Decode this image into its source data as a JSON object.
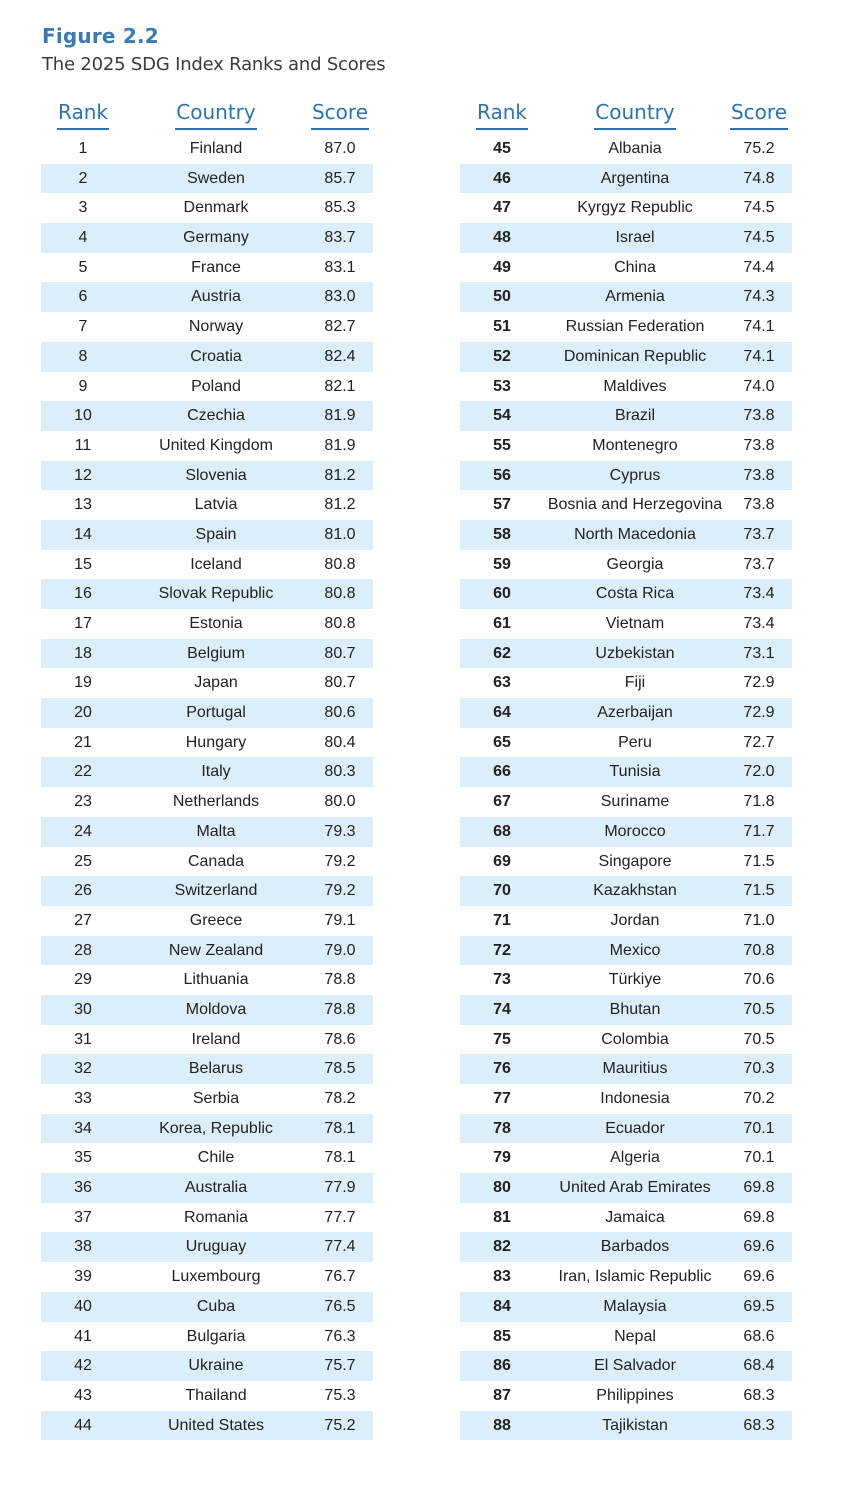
{
  "figure_label": "Figure 2.2",
  "figure_title": "The 2025 SDG Index Ranks and Scores",
  "headers": {
    "rank": "Rank",
    "country": "Country",
    "score": "Score"
  },
  "colors": {
    "accent": "#2e73b1",
    "title_blue": "#3b79b5",
    "row_shade": "#dbeef9"
  },
  "left_rows": [
    {
      "rank": "1",
      "country": "Finland",
      "score": "87.0"
    },
    {
      "rank": "2",
      "country": "Sweden",
      "score": "85.7"
    },
    {
      "rank": "3",
      "country": "Denmark",
      "score": "85.3"
    },
    {
      "rank": "4",
      "country": "Germany",
      "score": "83.7"
    },
    {
      "rank": "5",
      "country": "France",
      "score": "83.1"
    },
    {
      "rank": "6",
      "country": "Austria",
      "score": "83.0"
    },
    {
      "rank": "7",
      "country": "Norway",
      "score": "82.7"
    },
    {
      "rank": "8",
      "country": "Croatia",
      "score": "82.4"
    },
    {
      "rank": "9",
      "country": "Poland",
      "score": "82.1"
    },
    {
      "rank": "10",
      "country": "Czechia",
      "score": "81.9"
    },
    {
      "rank": "11",
      "country": "United Kingdom",
      "score": "81.9"
    },
    {
      "rank": "12",
      "country": "Slovenia",
      "score": "81.2"
    },
    {
      "rank": "13",
      "country": "Latvia",
      "score": "81.2"
    },
    {
      "rank": "14",
      "country": "Spain",
      "score": "81.0"
    },
    {
      "rank": "15",
      "country": "Iceland",
      "score": "80.8"
    },
    {
      "rank": "16",
      "country": "Slovak Republic",
      "score": "80.8"
    },
    {
      "rank": "17",
      "country": "Estonia",
      "score": "80.8"
    },
    {
      "rank": "18",
      "country": "Belgium",
      "score": "80.7"
    },
    {
      "rank": "19",
      "country": "Japan",
      "score": "80.7"
    },
    {
      "rank": "20",
      "country": "Portugal",
      "score": "80.6"
    },
    {
      "rank": "21",
      "country": "Hungary",
      "score": "80.4"
    },
    {
      "rank": "22",
      "country": "Italy",
      "score": "80.3"
    },
    {
      "rank": "23",
      "country": "Netherlands",
      "score": "80.0"
    },
    {
      "rank": "24",
      "country": "Malta",
      "score": "79.3"
    },
    {
      "rank": "25",
      "country": "Canada",
      "score": "79.2"
    },
    {
      "rank": "26",
      "country": "Switzerland",
      "score": "79.2"
    },
    {
      "rank": "27",
      "country": "Greece",
      "score": "79.1"
    },
    {
      "rank": "28",
      "country": "New Zealand",
      "score": "79.0"
    },
    {
      "rank": "29",
      "country": "Lithuania",
      "score": "78.8"
    },
    {
      "rank": "30",
      "country": "Moldova",
      "score": "78.8"
    },
    {
      "rank": "31",
      "country": "Ireland",
      "score": "78.6"
    },
    {
      "rank": "32",
      "country": "Belarus",
      "score": "78.5"
    },
    {
      "rank": "33",
      "country": "Serbia",
      "score": "78.2"
    },
    {
      "rank": "34",
      "country": "Korea, Republic",
      "score": "78.1"
    },
    {
      "rank": "35",
      "country": "Chile",
      "score": "78.1"
    },
    {
      "rank": "36",
      "country": "Australia",
      "score": "77.9"
    },
    {
      "rank": "37",
      "country": "Romania",
      "score": "77.7"
    },
    {
      "rank": "38",
      "country": "Uruguay",
      "score": "77.4"
    },
    {
      "rank": "39",
      "country": "Luxembourg",
      "score": "76.7"
    },
    {
      "rank": "40",
      "country": "Cuba",
      "score": "76.5"
    },
    {
      "rank": "41",
      "country": "Bulgaria",
      "score": "76.3"
    },
    {
      "rank": "42",
      "country": "Ukraine",
      "score": "75.7"
    },
    {
      "rank": "43",
      "country": "Thailand",
      "score": "75.3"
    },
    {
      "rank": "44",
      "country": "United States",
      "score": "75.2"
    }
  ],
  "right_rows": [
    {
      "rank": "45",
      "country": "Albania",
      "score": "75.2"
    },
    {
      "rank": "46",
      "country": "Argentina",
      "score": "74.8"
    },
    {
      "rank": "47",
      "country": "Kyrgyz Republic",
      "score": "74.5"
    },
    {
      "rank": "48",
      "country": "Israel",
      "score": "74.5"
    },
    {
      "rank": "49",
      "country": "China",
      "score": "74.4"
    },
    {
      "rank": "50",
      "country": "Armenia",
      "score": "74.3"
    },
    {
      "rank": "51",
      "country": "Russian Federation",
      "score": "74.1"
    },
    {
      "rank": "52",
      "country": "Dominican Republic",
      "score": "74.1"
    },
    {
      "rank": "53",
      "country": "Maldives",
      "score": "74.0"
    },
    {
      "rank": "54",
      "country": "Brazil",
      "score": "73.8"
    },
    {
      "rank": "55",
      "country": "Montenegro",
      "score": "73.8"
    },
    {
      "rank": "56",
      "country": "Cyprus",
      "score": "73.8"
    },
    {
      "rank": "57",
      "country": "Bosnia and Herzegovina",
      "score": "73.8"
    },
    {
      "rank": "58",
      "country": "North Macedonia",
      "score": "73.7"
    },
    {
      "rank": "59",
      "country": "Georgia",
      "score": "73.7"
    },
    {
      "rank": "60",
      "country": "Costa Rica",
      "score": "73.4"
    },
    {
      "rank": "61",
      "country": "Vietnam",
      "score": "73.4"
    },
    {
      "rank": "62",
      "country": "Uzbekistan",
      "score": "73.1"
    },
    {
      "rank": "63",
      "country": "Fiji",
      "score": "72.9"
    },
    {
      "rank": "64",
      "country": "Azerbaijan",
      "score": "72.9"
    },
    {
      "rank": "65",
      "country": "Peru",
      "score": "72.7"
    },
    {
      "rank": "66",
      "country": "Tunisia",
      "score": "72.0"
    },
    {
      "rank": "67",
      "country": "Suriname",
      "score": "71.8"
    },
    {
      "rank": "68",
      "country": "Morocco",
      "score": "71.7"
    },
    {
      "rank": "69",
      "country": "Singapore",
      "score": "71.5"
    },
    {
      "rank": "70",
      "country": "Kazakhstan",
      "score": "71.5"
    },
    {
      "rank": "71",
      "country": "Jordan",
      "score": "71.0"
    },
    {
      "rank": "72",
      "country": "Mexico",
      "score": "70.8"
    },
    {
      "rank": "73",
      "country": "Türkiye",
      "score": "70.6"
    },
    {
      "rank": "74",
      "country": "Bhutan",
      "score": "70.5"
    },
    {
      "rank": "75",
      "country": "Colombia",
      "score": "70.5"
    },
    {
      "rank": "76",
      "country": "Mauritius",
      "score": "70.3"
    },
    {
      "rank": "77",
      "country": "Indonesia",
      "score": "70.2"
    },
    {
      "rank": "78",
      "country": "Ecuador",
      "score": "70.1"
    },
    {
      "rank": "79",
      "country": "Algeria",
      "score": "70.1"
    },
    {
      "rank": "80",
      "country": "United Arab Emirates",
      "score": "69.8"
    },
    {
      "rank": "81",
      "country": "Jamaica",
      "score": "69.8"
    },
    {
      "rank": "82",
      "country": "Barbados",
      "score": "69.6"
    },
    {
      "rank": "83",
      "country": "Iran, Islamic Republic",
      "score": "69.6"
    },
    {
      "rank": "84",
      "country": "Malaysia",
      "score": "69.5"
    },
    {
      "rank": "85",
      "country": "Nepal",
      "score": "68.6"
    },
    {
      "rank": "86",
      "country": "El Salvador",
      "score": "68.4"
    },
    {
      "rank": "87",
      "country": "Philippines",
      "score": "68.3"
    },
    {
      "rank": "88",
      "country": "Tajikistan",
      "score": "68.3"
    }
  ]
}
